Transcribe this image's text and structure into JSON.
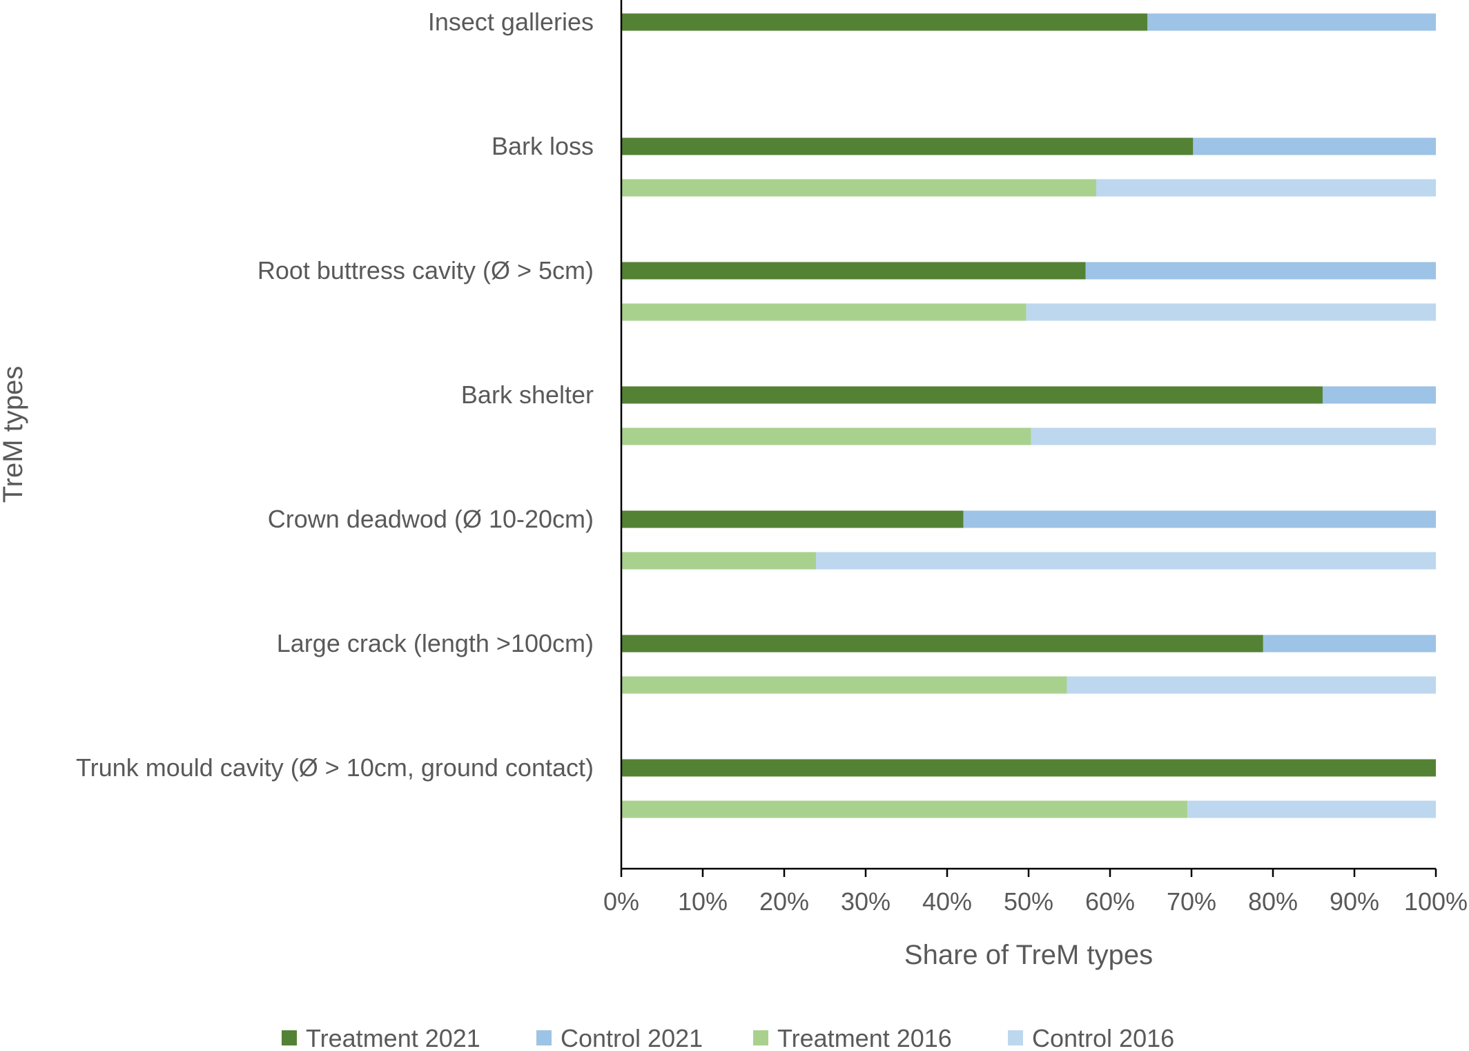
{
  "chart_data": {
    "type": "bar",
    "orientation": "horizontal",
    "stacked": true,
    "normalized": true,
    "xlabel": "Share of TreM types",
    "ylabel": "TreM types",
    "xlim": [
      0,
      100
    ],
    "x_ticks": [
      "0%",
      "10%",
      "20%",
      "30%",
      "40%",
      "50%",
      "60%",
      "70%",
      "80%",
      "90%",
      "100%"
    ],
    "grid": false,
    "legend_position": "bottom",
    "categories": [
      "Insect galleries",
      "Bark loss",
      "Root buttress cavity (Ø > 5cm)",
      "Bark shelter",
      "Crown deadwod (Ø 10-20cm)",
      "Large crack (length >100cm)",
      "Trunk mould cavity (Ø > 10cm, ground contact)"
    ],
    "series": [
      {
        "name": "Treatment 2021",
        "color": "#548235",
        "row": "2021",
        "values": [
          64.6,
          70.2,
          57.0,
          86.1,
          42.0,
          78.8,
          100
        ]
      },
      {
        "name": "Control 2021",
        "color": "#9DC3E6",
        "row": "2021",
        "values": [
          35.4,
          29.8,
          43.0,
          13.9,
          58.0,
          21.2,
          0
        ]
      },
      {
        "name": "Treatment 2016",
        "color": "#A9D18E",
        "row": "2016",
        "values": [
          null,
          58.3,
          49.7,
          50.3,
          23.9,
          54.7,
          69.5
        ]
      },
      {
        "name": "Control 2016",
        "color": "#BDD7EE",
        "row": "2016",
        "values": [
          null,
          41.7,
          50.3,
          49.7,
          76.1,
          45.3,
          30.5
        ]
      }
    ]
  }
}
